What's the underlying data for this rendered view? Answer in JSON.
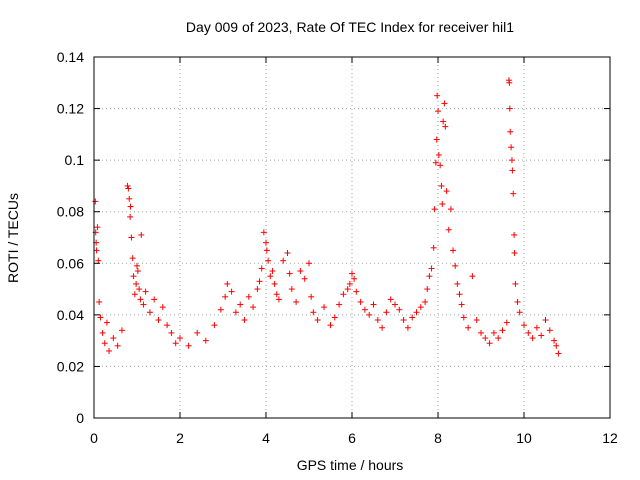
{
  "chart_data": {
    "type": "scatter",
    "title": "Day 009 of 2023, Rate Of TEC Index for receiver hil1",
    "xlabel": "GPS time / hours",
    "ylabel": "ROTI / TECUs",
    "xlim": [
      0,
      12
    ],
    "ylim": [
      0,
      0.14
    ],
    "xticks": [
      0,
      2,
      4,
      6,
      8,
      10,
      12
    ],
    "xtick_labels": [
      "0",
      "2",
      "4",
      "6",
      "8",
      "10",
      "12"
    ],
    "yticks": [
      0,
      0.02,
      0.04,
      0.06,
      0.08,
      0.1,
      0.12,
      0.14
    ],
    "ytick_labels": [
      "0",
      "0.02",
      "0.04",
      "0.06",
      "0.08",
      "0.1",
      "0.12",
      "0.14"
    ],
    "grid": true,
    "marker": "+",
    "color": "#ff0000",
    "series": [
      {
        "name": "ROTI",
        "points": [
          [
            0.03,
            0.084
          ],
          [
            0.04,
            0.072
          ],
          [
            0.05,
            0.068
          ],
          [
            0.06,
            0.065
          ],
          [
            0.08,
            0.074
          ],
          [
            0.1,
            0.061
          ],
          [
            0.12,
            0.045
          ],
          [
            0.15,
            0.039
          ],
          [
            0.2,
            0.033
          ],
          [
            0.25,
            0.029
          ],
          [
            0.3,
            0.037
          ],
          [
            0.35,
            0.026
          ],
          [
            0.45,
            0.031
          ],
          [
            0.55,
            0.028
          ],
          [
            0.65,
            0.034
          ],
          [
            0.78,
            0.09
          ],
          [
            0.8,
            0.089
          ],
          [
            0.82,
            0.085
          ],
          [
            0.84,
            0.078
          ],
          [
            0.85,
            0.082
          ],
          [
            0.87,
            0.07
          ],
          [
            0.9,
            0.062
          ],
          [
            0.92,
            0.055
          ],
          [
            0.95,
            0.048
          ],
          [
            0.98,
            0.052
          ],
          [
            1.0,
            0.059
          ],
          [
            1.02,
            0.057
          ],
          [
            1.05,
            0.05
          ],
          [
            1.08,
            0.046
          ],
          [
            1.1,
            0.071
          ],
          [
            1.15,
            0.044
          ],
          [
            1.2,
            0.049
          ],
          [
            1.3,
            0.041
          ],
          [
            1.4,
            0.046
          ],
          [
            1.5,
            0.038
          ],
          [
            1.6,
            0.043
          ],
          [
            1.7,
            0.036
          ],
          [
            1.8,
            0.033
          ],
          [
            1.9,
            0.029
          ],
          [
            2.0,
            0.031
          ],
          [
            2.2,
            0.028
          ],
          [
            2.4,
            0.033
          ],
          [
            2.6,
            0.03
          ],
          [
            2.8,
            0.036
          ],
          [
            2.95,
            0.042
          ],
          [
            3.05,
            0.047
          ],
          [
            3.1,
            0.052
          ],
          [
            3.2,
            0.049
          ],
          [
            3.3,
            0.041
          ],
          [
            3.4,
            0.044
          ],
          [
            3.5,
            0.038
          ],
          [
            3.6,
            0.047
          ],
          [
            3.7,
            0.043
          ],
          [
            3.8,
            0.05
          ],
          [
            3.85,
            0.053
          ],
          [
            3.9,
            0.058
          ],
          [
            3.95,
            0.072
          ],
          [
            4.0,
            0.068
          ],
          [
            4.02,
            0.065
          ],
          [
            4.05,
            0.061
          ],
          [
            4.1,
            0.055
          ],
          [
            4.15,
            0.057
          ],
          [
            4.2,
            0.052
          ],
          [
            4.25,
            0.048
          ],
          [
            4.3,
            0.046
          ],
          [
            4.4,
            0.061
          ],
          [
            4.5,
            0.064
          ],
          [
            4.55,
            0.056
          ],
          [
            4.6,
            0.05
          ],
          [
            4.7,
            0.045
          ],
          [
            4.8,
            0.057
          ],
          [
            4.9,
            0.054
          ],
          [
            5.0,
            0.06
          ],
          [
            5.05,
            0.047
          ],
          [
            5.1,
            0.041
          ],
          [
            5.2,
            0.038
          ],
          [
            5.35,
            0.043
          ],
          [
            5.5,
            0.036
          ],
          [
            5.6,
            0.039
          ],
          [
            5.7,
            0.044
          ],
          [
            5.8,
            0.048
          ],
          [
            5.9,
            0.05
          ],
          [
            5.95,
            0.052
          ],
          [
            6.0,
            0.056
          ],
          [
            6.05,
            0.054
          ],
          [
            6.1,
            0.049
          ],
          [
            6.2,
            0.045
          ],
          [
            6.3,
            0.042
          ],
          [
            6.4,
            0.04
          ],
          [
            6.5,
            0.044
          ],
          [
            6.6,
            0.038
          ],
          [
            6.7,
            0.035
          ],
          [
            6.8,
            0.041
          ],
          [
            6.9,
            0.046
          ],
          [
            7.0,
            0.044
          ],
          [
            7.1,
            0.042
          ],
          [
            7.2,
            0.038
          ],
          [
            7.3,
            0.035
          ],
          [
            7.4,
            0.039
          ],
          [
            7.5,
            0.041
          ],
          [
            7.6,
            0.043
          ],
          [
            7.7,
            0.045
          ],
          [
            7.75,
            0.05
          ],
          [
            7.8,
            0.055
          ],
          [
            7.85,
            0.058
          ],
          [
            7.9,
            0.066
          ],
          [
            7.92,
            0.081
          ],
          [
            7.95,
            0.099
          ],
          [
            7.97,
            0.108
          ],
          [
            7.98,
            0.125
          ],
          [
            8.0,
            0.119
          ],
          [
            8.02,
            0.102
          ],
          [
            8.05,
            0.098
          ],
          [
            8.08,
            0.09
          ],
          [
            8.1,
            0.083
          ],
          [
            8.12,
            0.115
          ],
          [
            8.15,
            0.122
          ],
          [
            8.17,
            0.113
          ],
          [
            8.2,
            0.088
          ],
          [
            8.25,
            0.073
          ],
          [
            8.3,
            0.081
          ],
          [
            8.35,
            0.065
          ],
          [
            8.4,
            0.059
          ],
          [
            8.45,
            0.052
          ],
          [
            8.5,
            0.048
          ],
          [
            8.55,
            0.044
          ],
          [
            8.6,
            0.039
          ],
          [
            8.7,
            0.035
          ],
          [
            8.8,
            0.055
          ],
          [
            8.9,
            0.038
          ],
          [
            9.0,
            0.033
          ],
          [
            9.1,
            0.031
          ],
          [
            9.2,
            0.029
          ],
          [
            9.3,
            0.033
          ],
          [
            9.4,
            0.031
          ],
          [
            9.5,
            0.034
          ],
          [
            9.6,
            0.037
          ],
          [
            9.65,
            0.131
          ],
          [
            9.66,
            0.13
          ],
          [
            9.67,
            0.12
          ],
          [
            9.68,
            0.111
          ],
          [
            9.7,
            0.105
          ],
          [
            9.72,
            0.1
          ],
          [
            9.73,
            0.096
          ],
          [
            9.75,
            0.087
          ],
          [
            9.77,
            0.071
          ],
          [
            9.78,
            0.064
          ],
          [
            9.8,
            0.052
          ],
          [
            9.85,
            0.045
          ],
          [
            9.9,
            0.041
          ],
          [
            10.0,
            0.036
          ],
          [
            10.1,
            0.033
          ],
          [
            10.2,
            0.031
          ],
          [
            10.3,
            0.035
          ],
          [
            10.4,
            0.032
          ],
          [
            10.5,
            0.038
          ],
          [
            10.6,
            0.034
          ],
          [
            10.7,
            0.03
          ],
          [
            10.75,
            0.028
          ],
          [
            10.8,
            0.025
          ]
        ]
      }
    ]
  }
}
